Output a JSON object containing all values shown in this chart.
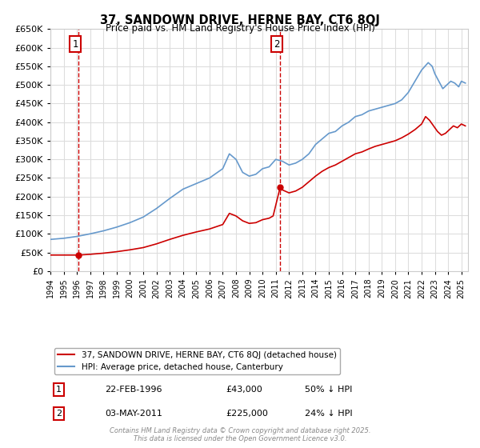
{
  "title": "37, SANDOWN DRIVE, HERNE BAY, CT6 8QJ",
  "subtitle": "Price paid vs. HM Land Registry's House Price Index (HPI)",
  "legend_line1": "37, SANDOWN DRIVE, HERNE BAY, CT6 8QJ (detached house)",
  "legend_line2": "HPI: Average price, detached house, Canterbury",
  "footer": "Contains HM Land Registry data © Crown copyright and database right 2025.\nThis data is licensed under the Open Government Licence v3.0.",
  "sale1_label": "1",
  "sale1_date": "22-FEB-1996",
  "sale1_price": "£43,000",
  "sale1_hpi": "50% ↓ HPI",
  "sale2_label": "2",
  "sale2_date": "03-MAY-2011",
  "sale2_price": "£225,000",
  "sale2_hpi": "24% ↓ HPI",
  "sale1_year": 1996.13,
  "sale1_value": 43000,
  "sale2_year": 2011.33,
  "sale2_value": 225000,
  "vline1_x": 1996.13,
  "vline2_x": 2011.33,
  "red_color": "#cc0000",
  "blue_color": "#6699cc",
  "grid_color": "#dddddd",
  "bg_color": "#ffffff",
  "ylim": [
    0,
    650000
  ],
  "xlim": [
    1994,
    2025.5
  ],
  "hpi_x": [
    1994.0,
    1995.0,
    1996.0,
    1997.0,
    1998.0,
    1999.0,
    2000.0,
    2001.0,
    2002.0,
    2003.0,
    2004.0,
    2005.0,
    2006.0,
    2007.0,
    2007.5,
    2008.0,
    2008.5,
    2009.0,
    2009.5,
    2010.0,
    2010.5,
    2011.0,
    2011.5,
    2012.0,
    2012.5,
    2013.0,
    2013.5,
    2014.0,
    2014.5,
    2015.0,
    2015.5,
    2016.0,
    2016.5,
    2017.0,
    2017.5,
    2018.0,
    2018.5,
    2019.0,
    2019.5,
    2020.0,
    2020.5,
    2021.0,
    2021.5,
    2022.0,
    2022.5,
    2022.8,
    2023.0,
    2023.3,
    2023.6,
    2023.9,
    2024.2,
    2024.5,
    2024.8,
    2025.0,
    2025.3
  ],
  "hpi_y": [
    85000,
    88000,
    93000,
    100000,
    108000,
    118000,
    130000,
    145000,
    168000,
    195000,
    220000,
    235000,
    250000,
    275000,
    315000,
    300000,
    265000,
    255000,
    260000,
    275000,
    280000,
    300000,
    295000,
    285000,
    290000,
    300000,
    315000,
    340000,
    355000,
    370000,
    375000,
    390000,
    400000,
    415000,
    420000,
    430000,
    435000,
    440000,
    445000,
    450000,
    460000,
    480000,
    510000,
    540000,
    560000,
    550000,
    530000,
    510000,
    490000,
    500000,
    510000,
    505000,
    495000,
    510000,
    505000
  ],
  "red_x": [
    1994.0,
    1995.0,
    1996.13,
    1997.0,
    1998.0,
    1999.0,
    2000.0,
    2001.0,
    2002.0,
    2003.0,
    2004.0,
    2005.0,
    2006.0,
    2007.0,
    2007.5,
    2008.0,
    2008.5,
    2009.0,
    2009.5,
    2010.0,
    2010.5,
    2010.8,
    2011.33,
    2011.5,
    2012.0,
    2012.5,
    2013.0,
    2013.5,
    2014.0,
    2014.5,
    2015.0,
    2015.5,
    2016.0,
    2016.5,
    2017.0,
    2017.5,
    2018.0,
    2018.5,
    2019.0,
    2019.5,
    2020.0,
    2020.5,
    2021.0,
    2021.5,
    2022.0,
    2022.3,
    2022.6,
    2022.9,
    2023.2,
    2023.5,
    2023.8,
    2024.1,
    2024.4,
    2024.7,
    2025.0,
    2025.3
  ],
  "red_y": [
    43000,
    43000,
    43000,
    45000,
    48000,
    52000,
    57000,
    63000,
    73000,
    85000,
    96000,
    105000,
    113000,
    125000,
    155000,
    148000,
    135000,
    128000,
    130000,
    138000,
    142000,
    148000,
    225000,
    218000,
    210000,
    215000,
    225000,
    240000,
    255000,
    268000,
    278000,
    285000,
    295000,
    305000,
    315000,
    320000,
    328000,
    335000,
    340000,
    345000,
    350000,
    358000,
    368000,
    380000,
    395000,
    415000,
    405000,
    390000,
    375000,
    365000,
    370000,
    380000,
    390000,
    385000,
    395000,
    390000
  ]
}
